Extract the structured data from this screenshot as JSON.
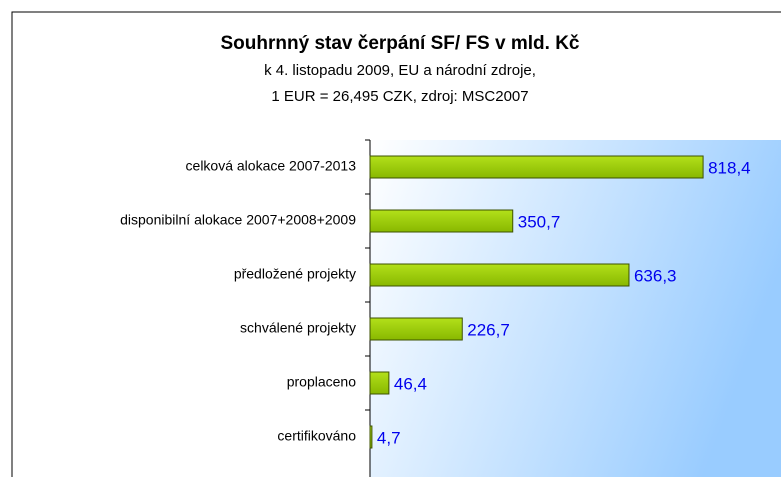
{
  "chart_data": {
    "type": "hbar",
    "title": "Souhrnný stav čerpání SF/ FS v mld. Kč",
    "subtitle": [
      "k 4. listopadu 2009, EU a národní zdroje,",
      "1 EUR = 26,495 CZK, zdroj: MSC2007"
    ],
    "categories": [
      "celková alokace 2007-2013",
      "disponibilní alokace 2007+2008+2009",
      "předložené projekty",
      "schválené projekty",
      "proplaceno",
      "certifikováno"
    ],
    "values": [
      818.4,
      350.7,
      636.3,
      226.7,
      46.4,
      4.7
    ],
    "value_labels": [
      "818,4",
      "350,7",
      "636,3",
      "226,7",
      "46,4",
      "4,7"
    ],
    "color": "#99cc00",
    "label_color": "#0000ee",
    "xlim": [
      0,
      1000
    ]
  }
}
